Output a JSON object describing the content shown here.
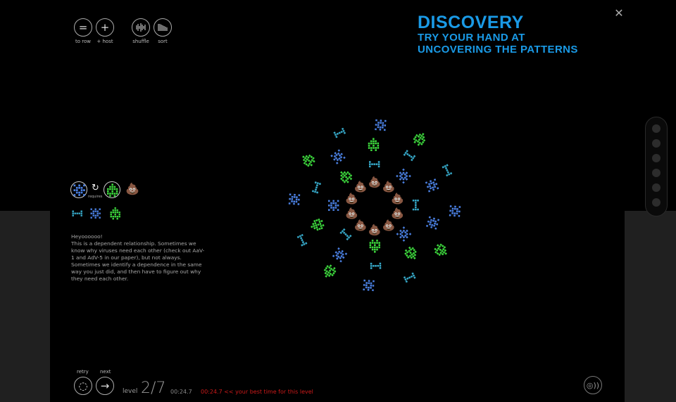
{
  "title": {
    "line1": "DISCOVERY",
    "line2": "TRY YOUR HAND AT",
    "line3": "UNCOVERING THE PATTERNS"
  },
  "toolbar": [
    {
      "label": "to row",
      "icon": "equals-icon"
    },
    {
      "label": "+ host",
      "icon": "plus-icon"
    },
    {
      "label": "shuffle",
      "icon": "waveform-icon"
    },
    {
      "label": "sort",
      "icon": "bars-icon"
    }
  ],
  "rule": {
    "requires_label": "requires",
    "emoji": "💩",
    "arrow": "↻"
  },
  "message": {
    "greeting": "Heyoooooo!",
    "body": "This is a dependent relationship. Sometimes we know why viruses need each other (check out AaV-1 and AdV-5 in our paper), but not always. Sometimes we identify a dependence in the same way you just did, and then have to figure out why they need each other."
  },
  "footer": {
    "retry_label": "retry",
    "next_label": "next",
    "level_label": "level",
    "level_value": "2/7",
    "time": "00:24.7",
    "best_time": "00:24.7 << your best time for this level"
  },
  "colors": {
    "accent": "#1a9ae6",
    "green": "#3dd83d",
    "blue": "#4a7fe0",
    "teal": "#36a8c8",
    "alert": "#cc1a1a"
  },
  "emoji": "💩"
}
